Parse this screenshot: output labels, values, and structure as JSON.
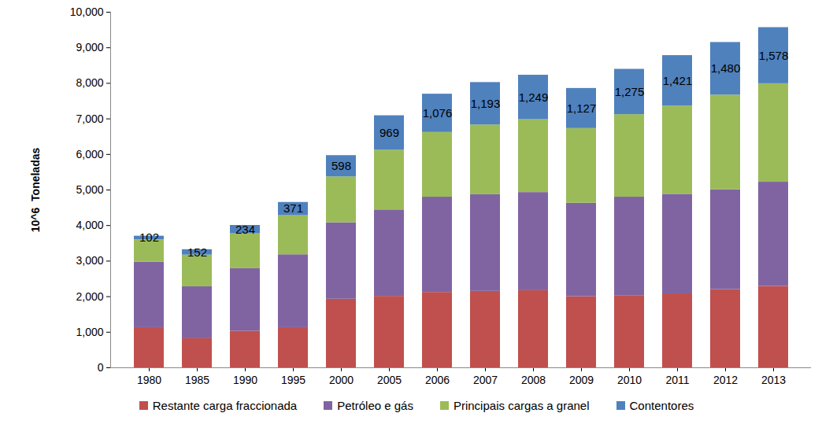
{
  "chart_data": {
    "type": "bar",
    "stacked": true,
    "grid": false,
    "legend": "bottom",
    "y_label": "10^6  Toneladas",
    "categories": [
      "1980",
      "1985",
      "1990",
      "1995",
      "2000",
      "2005",
      "2006",
      "2007",
      "2008",
      "2009",
      "2010",
      "2011",
      "2012",
      "2013"
    ],
    "ylim": [
      0,
      10000
    ],
    "yticks": [
      0,
      {
        "value": 1000,
        "label": "1,000"
      },
      {
        "value": 2000,
        "label": "2,000"
      },
      {
        "value": 3000,
        "label": "3,000"
      },
      {
        "value": 4000,
        "label": "4,000"
      },
      {
        "value": 5000,
        "label": "5,000"
      },
      {
        "value": 6000,
        "label": "6,000"
      },
      {
        "value": 7000,
        "label": "7,000"
      },
      {
        "value": 8000,
        "label": "8,000"
      },
      {
        "value": 9000,
        "label": "9,000"
      },
      {
        "value": 10000,
        "label": "10,000"
      }
    ],
    "series": [
      {
        "name": "Restante carga fraccionada",
        "color": "#C0504D",
        "values": [
          1130,
          820,
          1030,
          1130,
          1930,
          2010,
          2120,
          2150,
          2170,
          2000,
          2030,
          2080,
          2200,
          2290
        ]
      },
      {
        "name": "Petróleo e gás",
        "color": "#8064A2",
        "values": [
          1840,
          1460,
          1760,
          2050,
          2150,
          2430,
          2680,
          2720,
          2760,
          2630,
          2770,
          2800,
          2810,
          2930
        ]
      },
      {
        "name": "Principais cargas a granel",
        "color": "#9BBB59",
        "values": [
          630,
          890,
          980,
          1100,
          1290,
          1680,
          1820,
          1960,
          2050,
          2100,
          2320,
          2480,
          2660,
          2770
        ]
      },
      {
        "name": "Contentores",
        "color": "#4F81BD",
        "data_labels": true,
        "values": [
          102,
          152,
          234,
          371,
          598,
          969,
          1076,
          1193,
          1249,
          1127,
          1275,
          1421,
          1480,
          1578
        ],
        "value_labels": [
          "102",
          "152",
          "234",
          "371",
          "598",
          "969",
          "1,076",
          "1,193",
          "1,249",
          "1,127",
          "1,275",
          "1,421",
          "1,480",
          "1,578"
        ]
      }
    ]
  }
}
